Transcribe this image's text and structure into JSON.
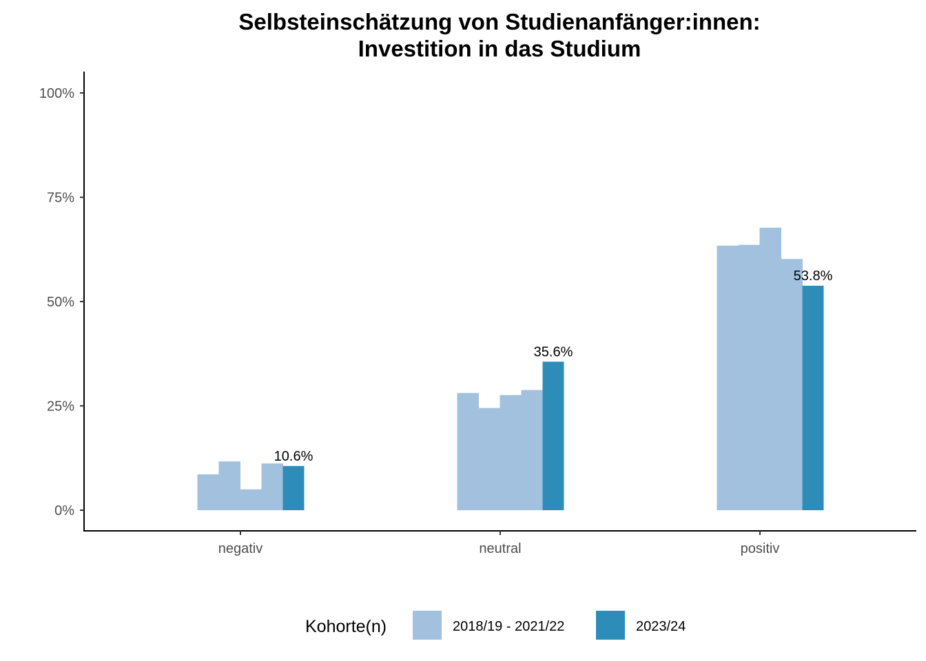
{
  "chart_data": {
    "type": "bar",
    "title_lines": [
      "Selbsteinschätzung von Studienanfänger:innen:",
      "Investition in das Studium"
    ],
    "xlabel": "",
    "ylabel": "",
    "categories": [
      "negativ",
      "neutral",
      "positiv"
    ],
    "ylim": [
      0,
      1
    ],
    "y_ticks": [
      0,
      0.25,
      0.5,
      0.75,
      1.0
    ],
    "y_tick_labels": [
      "0%",
      "25%",
      "50%",
      "75%",
      "100%"
    ],
    "grid": false,
    "legend": {
      "title": "Kohorte(n)",
      "position": "bottom",
      "entries": [
        "2018/19 - 2021/22",
        "2023/24"
      ]
    },
    "series": [
      {
        "legend_entry": "2018/19 - 2021/22",
        "color": "#a1c1de",
        "values": [
          [
            0.086,
            0.117,
            0.05,
            0.112
          ],
          [
            0.281,
            0.245,
            0.276,
            0.288
          ],
          [
            0.634,
            0.636,
            0.677,
            0.602
          ]
        ]
      },
      {
        "legend_entry": "2023/24",
        "color": "#2e8cb9",
        "values": [
          0.106,
          0.356,
          0.538
        ],
        "data_labels": [
          "10.6%",
          "35.6%",
          "53.8%"
        ]
      }
    ]
  }
}
